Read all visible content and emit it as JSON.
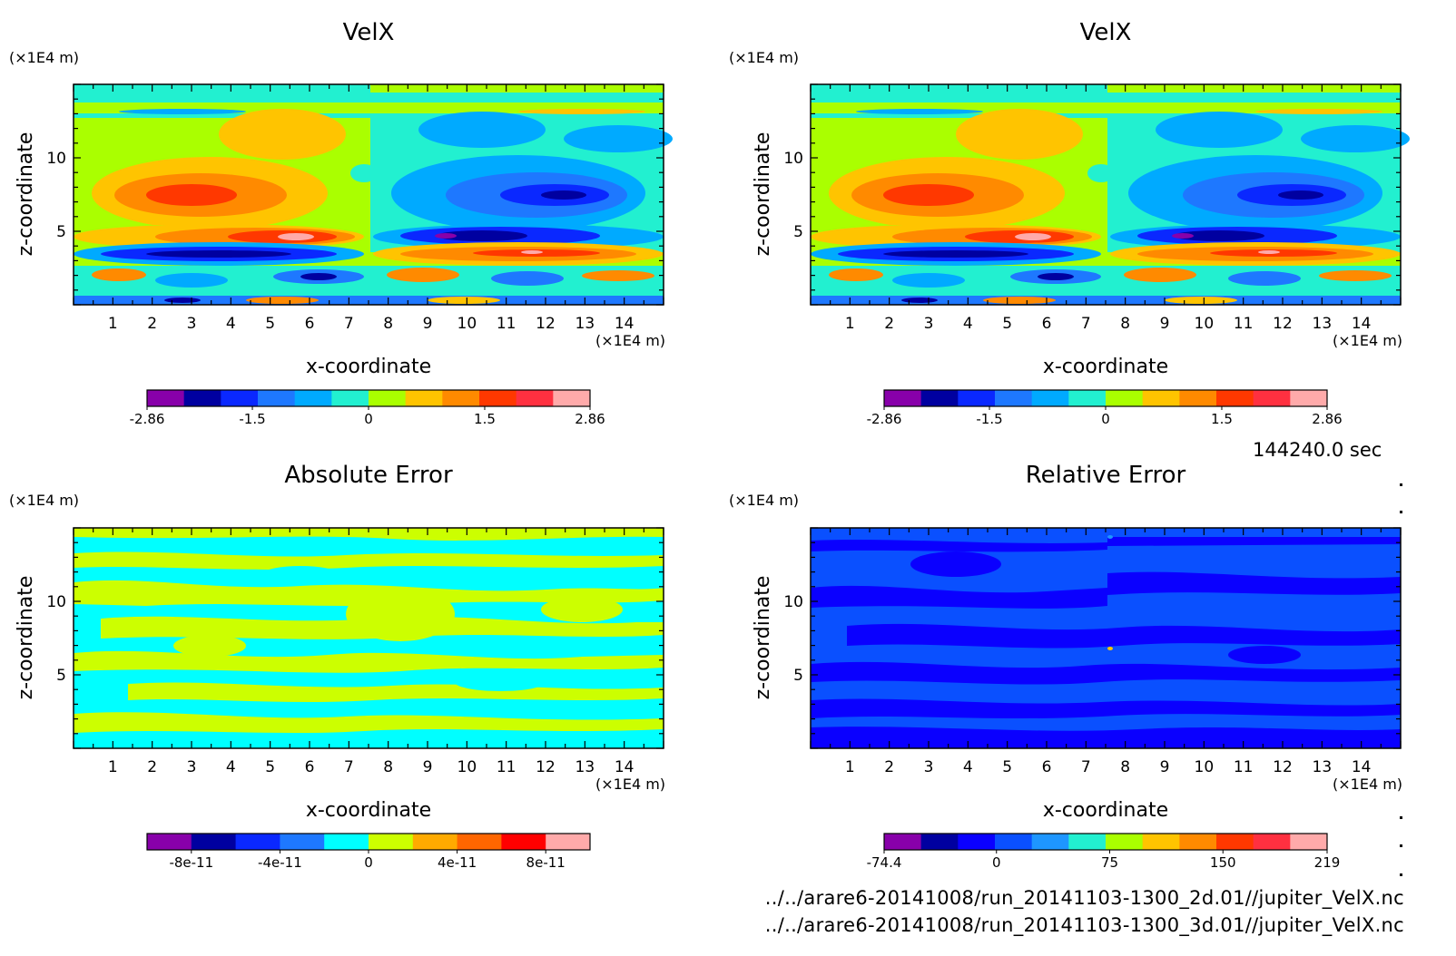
{
  "colors": {
    "velx_scale": [
      "#8800aa",
      "#0000a0",
      "#0a28ff",
      "#1e78ff",
      "#00aaff",
      "#22f0d0",
      "#aaff00",
      "#ffc400",
      "#ff8a00",
      "#ff3800",
      "#ff3040",
      "#ffaaaa"
    ],
    "abs_scale": [
      "#8800aa",
      "#0000a0",
      "#0a28ff",
      "#1e78ff",
      "#00ffff",
      "#ccff00",
      "#ffaa00",
      "#ff6600",
      "#ff0000",
      "#ffaaaa"
    ],
    "rel_scale": [
      "#8800aa",
      "#0000a0",
      "#0a00ff",
      "#0a50ff",
      "#1e96ff",
      "#22f0d0",
      "#aaff00",
      "#ffc400",
      "#ff8a00",
      "#ff3800",
      "#ff3040",
      "#ffaaaa"
    ]
  },
  "timestamp": "144240.0 sec",
  "files": [
    "../../arare6-20141008/run_20141103-1300_2d.01//jupiter_VelX.nc",
    "../../arare6-20141008/run_20141103-1300_3d.01//jupiter_VelX.nc"
  ],
  "chart_data": [
    {
      "type": "heatmap",
      "title": "VelX",
      "xlabel": "x-coordinate",
      "ylabel": "z-coordinate",
      "x_unit": "(×1E4 m)",
      "y_unit": "(×1E4 m)",
      "xlim": [
        0,
        15
      ],
      "ylim": [
        0,
        15
      ],
      "x_ticks": [
        1,
        2,
        3,
        4,
        5,
        6,
        7,
        8,
        9,
        10,
        11,
        12,
        13,
        14
      ],
      "y_ticks": [
        5,
        10
      ],
      "colorbar": {
        "min": -2.86,
        "max": 2.86,
        "tick_labels": [
          "-2.86",
          "-1.5",
          "0",
          "1.5",
          "2.86"
        ],
        "tick_values": [
          -2.86,
          -1.5,
          0,
          1.5,
          2.86
        ]
      },
      "scale": "velx_scale"
    },
    {
      "type": "heatmap",
      "title": "VelX",
      "xlabel": "x-coordinate",
      "ylabel": "z-coordinate",
      "x_unit": "(×1E4 m)",
      "y_unit": "(×1E4 m)",
      "xlim": [
        0,
        15
      ],
      "ylim": [
        0,
        15
      ],
      "x_ticks": [
        1,
        2,
        3,
        4,
        5,
        6,
        7,
        8,
        9,
        10,
        11,
        12,
        13,
        14
      ],
      "y_ticks": [
        5,
        10
      ],
      "colorbar": {
        "min": -2.86,
        "max": 2.86,
        "tick_labels": [
          "-2.86",
          "-1.5",
          "0",
          "1.5",
          "2.86"
        ],
        "tick_values": [
          -2.86,
          -1.5,
          0,
          1.5,
          2.86
        ]
      },
      "scale": "velx_scale"
    },
    {
      "type": "heatmap",
      "title": "Absolute Error",
      "xlabel": "x-coordinate",
      "ylabel": "z-coordinate",
      "x_unit": "(×1E4 m)",
      "y_unit": "(×1E4 m)",
      "xlim": [
        0,
        15
      ],
      "ylim": [
        0,
        15
      ],
      "x_ticks": [
        1,
        2,
        3,
        4,
        5,
        6,
        7,
        8,
        9,
        10,
        11,
        12,
        13,
        14
      ],
      "y_ticks": [
        5,
        10
      ],
      "colorbar": {
        "min": -1e-10,
        "max": 1e-10,
        "tick_labels": [
          "-8e-11",
          "-4e-11",
          "0",
          "4e-11",
          "8e-11"
        ],
        "tick_values": [
          -8e-11,
          -4e-11,
          0,
          4e-11,
          8e-11
        ]
      },
      "scale": "abs_scale"
    },
    {
      "type": "heatmap",
      "title": "Relative Error",
      "xlabel": "x-coordinate",
      "ylabel": "z-coordinate",
      "x_unit": "(×1E4 m)",
      "y_unit": "(×1E4 m)",
      "xlim": [
        0,
        15
      ],
      "ylim": [
        0,
        15
      ],
      "x_ticks": [
        1,
        2,
        3,
        4,
        5,
        6,
        7,
        8,
        9,
        10,
        11,
        12,
        13,
        14
      ],
      "y_ticks": [
        5,
        10
      ],
      "colorbar": {
        "min": -74.4,
        "max": 219,
        "tick_labels": [
          "-74.4",
          "0",
          "75",
          "150",
          "219"
        ],
        "tick_values": [
          -74.4,
          0,
          75,
          150,
          219
        ]
      },
      "scale": "rel_scale"
    }
  ]
}
